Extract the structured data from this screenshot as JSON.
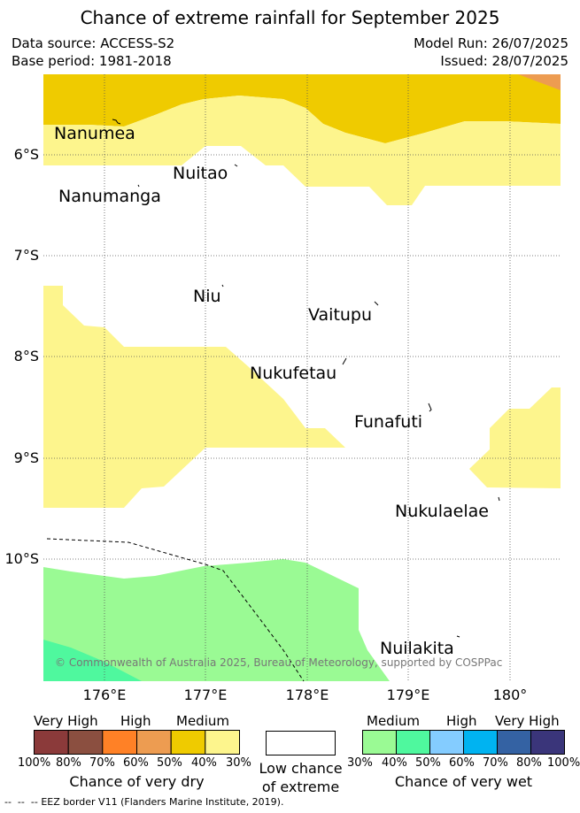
{
  "header": {
    "title": "Chance of extreme rainfall for September 2025",
    "data_source": "Data source: ACCESS-S2",
    "base_period": "Base period: 1981-2018",
    "model_run": "Model Run: 26/07/2025",
    "issued": "Issued: 28/07/2025"
  },
  "map": {
    "lat_labels": [
      "6°S",
      "7°S",
      "8°S",
      "9°S",
      "10°S"
    ],
    "lon_labels": [
      "176°E",
      "177°E",
      "178°E",
      "179°E",
      "180°"
    ],
    "islands": {
      "nanumea": "Nanumea",
      "nuitao": "Nuitao",
      "nanumanga": "Nanumanga",
      "niu": "Niu",
      "vaitupu": "Vaitupu",
      "nukufetau": "Nukufetau",
      "funafuti": "Funafuti",
      "nukulaelae": "Nukulaelae",
      "nuilakita": "Nuilakita"
    },
    "copyright": "© Commonwealth of Australia 2025, Bureau of Meteorology, supported by COSPPac"
  },
  "legend": {
    "dry": {
      "categories": [
        "Very High",
        "High",
        "Medium"
      ],
      "colors": [
        "#8b3a3a",
        "#8b4f40",
        "#ff8126",
        "#ed9c51",
        "#efcb00",
        "#fdf58d"
      ],
      "ticks": [
        "100%",
        "80%",
        "70%",
        "60%",
        "50%",
        "40%",
        "30%"
      ],
      "title": "Chance of very dry"
    },
    "low": {
      "line1": "Low chance",
      "line2": "of extreme"
    },
    "wet": {
      "categories": [
        "Medium",
        "High",
        "Very High"
      ],
      "colors": [
        "#9afa94",
        "#4ff89e",
        "#84ccff",
        "#00b3f1",
        "#3462a3",
        "#3a357a"
      ],
      "ticks": [
        "30%",
        "40%",
        "50%",
        "60%",
        "70%",
        "80%",
        "100%"
      ],
      "title": "Chance of very wet"
    },
    "eez": "EEZ border V11 (Flanders Marine Institute, 2019)."
  }
}
